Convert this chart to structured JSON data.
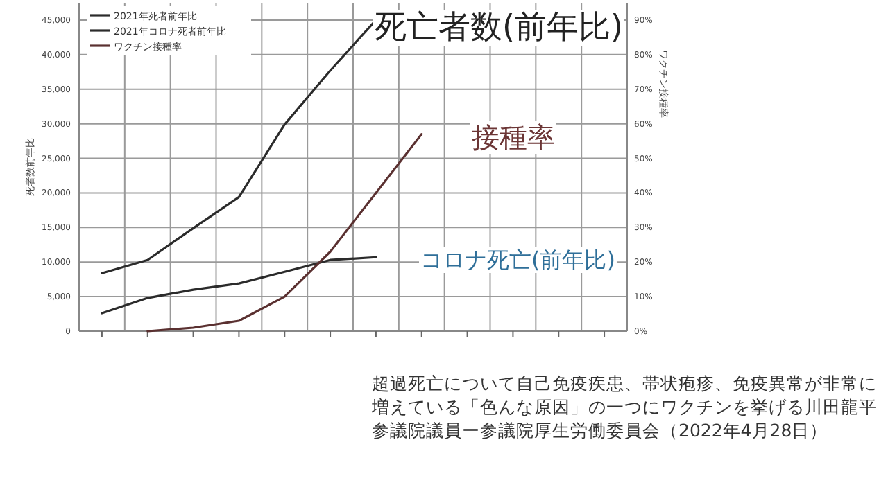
{
  "chart_data": {
    "type": "line",
    "categories": [
      null,
      null,
      null,
      null,
      null,
      null,
      null,
      null,
      null,
      null,
      null,
      null
    ],
    "series": [
      {
        "name": "2021年死者前年比",
        "color": "#2b2b2b",
        "values": [
          8400,
          10300,
          14900,
          19400,
          29900,
          37700,
          45000,
          null,
          null,
          null,
          null,
          null
        ]
      },
      {
        "name": "2021年コロナ死者前年比",
        "color": "#2b2b2b",
        "values": [
          2600,
          4800,
          6000,
          6900,
          8600,
          10300,
          10700,
          null,
          null,
          null,
          null,
          null
        ]
      },
      {
        "name": "ワクチン接種率",
        "color": "#5a3030",
        "axis": "y2",
        "values": [
          null,
          0,
          1,
          3,
          10,
          23,
          40,
          57,
          null,
          null,
          null,
          null
        ]
      }
    ],
    "ylabel": "死者数前年比",
    "y2label": "ワクチン接種率",
    "ylim": [
      0,
      47500
    ],
    "yticks": [
      0,
      {
        "value": 5000,
        "label": "5,000"
      },
      {
        "value": 10000,
        "label": "10,000"
      },
      {
        "value": 15000,
        "label": "15,000"
      },
      {
        "value": 20000,
        "label": "20,000"
      },
      {
        "value": 25000,
        "label": "25,000"
      },
      {
        "value": 30000,
        "label": "30,000"
      },
      {
        "value": 35000,
        "label": "35,000"
      },
      {
        "value": 40000,
        "label": "40,000"
      },
      {
        "value": 45000,
        "label": "45,000"
      }
    ],
    "y2lim": [
      0,
      95
    ],
    "y2ticks": [
      {
        "value": 0,
        "label": "0%"
      },
      {
        "value": 10,
        "label": "10%"
      },
      {
        "value": 20,
        "label": "20%"
      },
      {
        "value": 30,
        "label": "30%"
      },
      {
        "value": 40,
        "label": "40%"
      },
      {
        "value": 50,
        "label": "50%"
      },
      {
        "value": 60,
        "label": "60%"
      },
      {
        "value": 70,
        "label": "70%"
      },
      {
        "value": 80,
        "label": "80%"
      },
      {
        "value": 90,
        "label": "90%"
      }
    ],
    "grid": true,
    "legend": "top left",
    "annotations": [
      "死亡者数(前年比)",
      "接種率",
      "コロナ死亡(前年比)",
      "超過死亡について自己免疫疾患、帯状疱疹、免疫異常が非常に増えている「色んな原因」の一つにワクチンを挙げる川田龍平参議院議員ー参議院厚生労働委員会（2022年4月28日）"
    ]
  }
}
